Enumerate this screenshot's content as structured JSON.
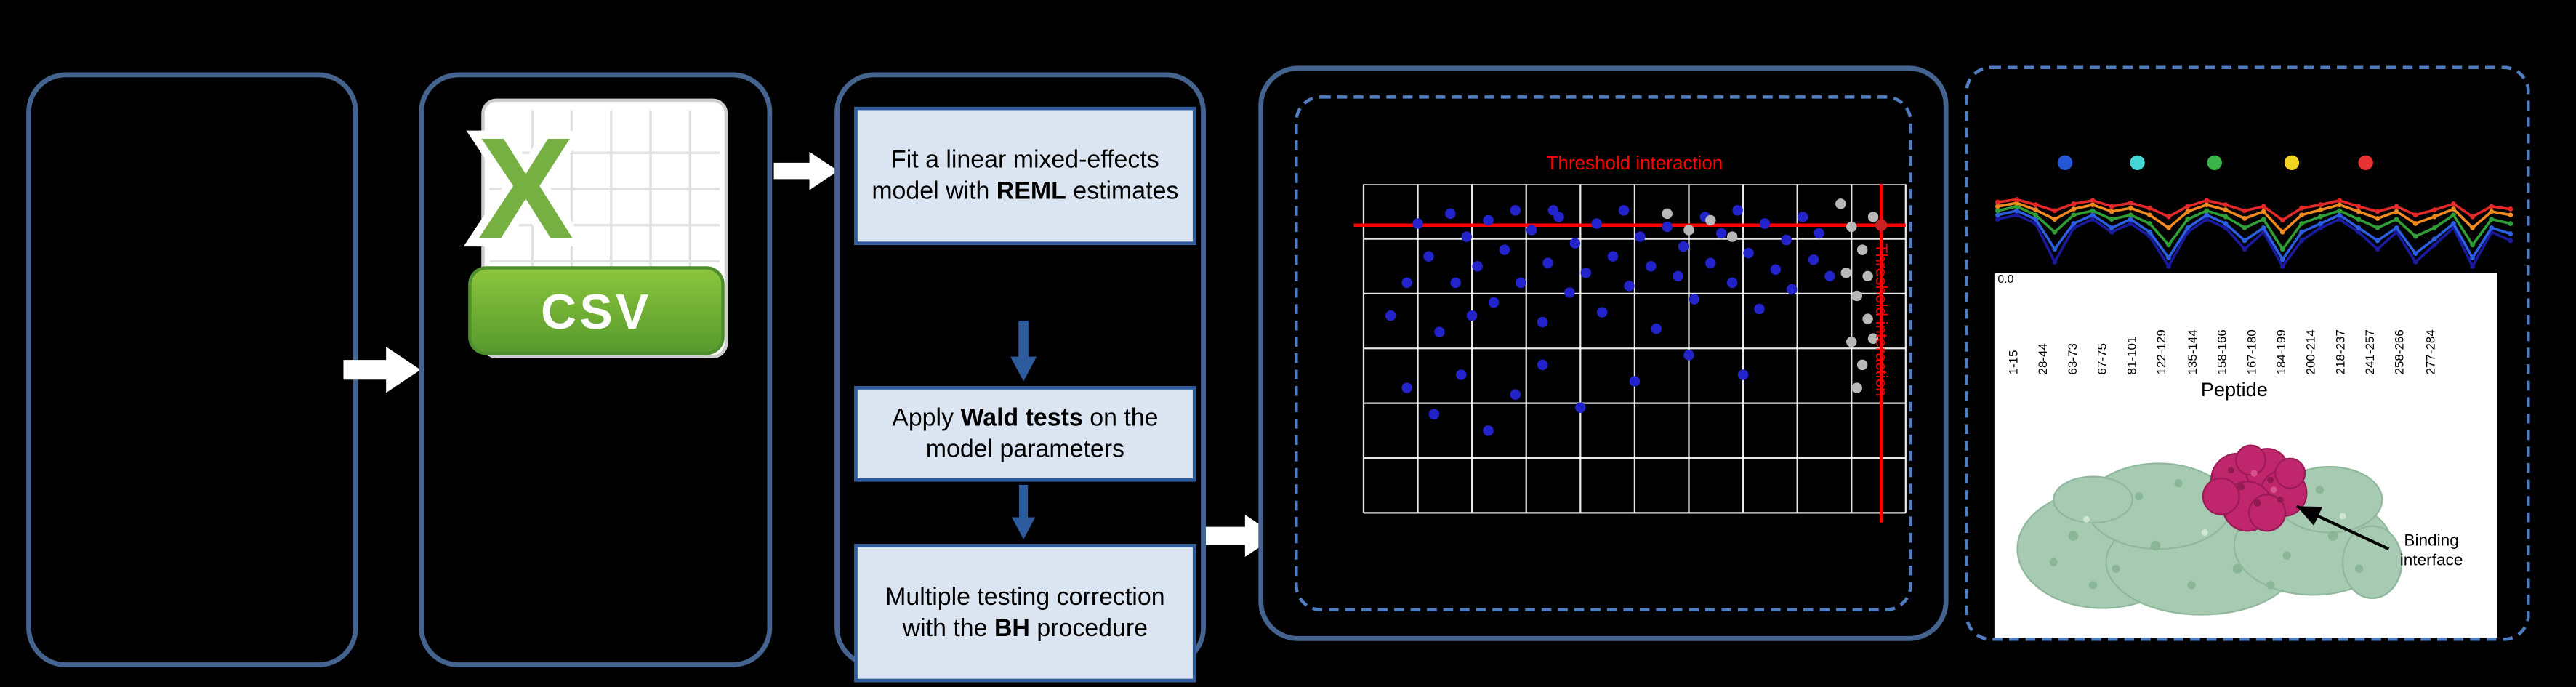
{
  "colors": {
    "background": "#000000",
    "box_border": "#44638f",
    "dashed_border": "#4f7dbf",
    "step_box_bg": "#dbe5f1",
    "step_box_border": "#2e5b9e",
    "flow_arrow": "#ffffff",
    "down_arrow": "#2e5b9e",
    "threshold_red": "#ff0000",
    "csv_green": "#76b043"
  },
  "flow": {
    "csv": {
      "letter": "X",
      "banner": "CSV"
    },
    "steps": {
      "fit": {
        "prefix": "Fit a linear mixed-effects model with ",
        "bold": "REML",
        "suffix": " estimates"
      },
      "wald": {
        "prefix": "Apply ",
        "bold": "Wald tests",
        "suffix": " on the model parameters"
      },
      "bh": {
        "prefix": "Multiple testing correction with the ",
        "bold": "BH",
        "suffix": " procedure"
      }
    }
  },
  "chart_data": [
    {
      "type": "scatter",
      "title": "Threshold interaction",
      "side_label": "Threshold interaction",
      "grid_cols": 10,
      "grid_rows": 6,
      "threshold_h_pct": 12.5,
      "threshold_v_pct": 95.5,
      "point_colors": {
        "blue": "#2323cc",
        "gray": "#b8b8b8",
        "red": "#cc2222"
      },
      "points_blue": [
        [
          5,
          40
        ],
        [
          8,
          30
        ],
        [
          10,
          12
        ],
        [
          12,
          22
        ],
        [
          14,
          45
        ],
        [
          16,
          9
        ],
        [
          17,
          30
        ],
        [
          19,
          16
        ],
        [
          21,
          25
        ],
        [
          23,
          11
        ],
        [
          24,
          36
        ],
        [
          26,
          20
        ],
        [
          28,
          8
        ],
        [
          29,
          30
        ],
        [
          31,
          14
        ],
        [
          33,
          42
        ],
        [
          34,
          24
        ],
        [
          36,
          10
        ],
        [
          38,
          33
        ],
        [
          39,
          18
        ],
        [
          41,
          27
        ],
        [
          43,
          12
        ],
        [
          44,
          39
        ],
        [
          46,
          22
        ],
        [
          48,
          8
        ],
        [
          49,
          31
        ],
        [
          51,
          16
        ],
        [
          53,
          25
        ],
        [
          54,
          44
        ],
        [
          56,
          13
        ],
        [
          58,
          28
        ],
        [
          59,
          19
        ],
        [
          61,
          35
        ],
        [
          63,
          10
        ],
        [
          64,
          24
        ],
        [
          66,
          15
        ],
        [
          68,
          30
        ],
        [
          69,
          8
        ],
        [
          71,
          21
        ],
        [
          73,
          38
        ],
        [
          74,
          12
        ],
        [
          76,
          26
        ],
        [
          78,
          17
        ],
        [
          79,
          32
        ],
        [
          81,
          10
        ],
        [
          83,
          23
        ],
        [
          84,
          15
        ],
        [
          86,
          28
        ],
        [
          8,
          62
        ],
        [
          13,
          70
        ],
        [
          18,
          58
        ],
        [
          23,
          75
        ],
        [
          28,
          64
        ],
        [
          33,
          55
        ],
        [
          40,
          68
        ],
        [
          50,
          60
        ],
        [
          60,
          52
        ],
        [
          70,
          58
        ],
        [
          20,
          40
        ],
        [
          35,
          8
        ]
      ],
      "points_gray": [
        [
          88,
          6
        ],
        [
          90,
          13
        ],
        [
          92,
          20
        ],
        [
          89,
          27
        ],
        [
          91,
          34
        ],
        [
          93,
          41
        ],
        [
          90,
          48
        ],
        [
          92,
          55
        ],
        [
          94,
          10
        ],
        [
          93,
          28
        ],
        [
          91,
          62
        ],
        [
          94,
          47
        ],
        [
          60,
          14
        ],
        [
          64,
          11
        ],
        [
          68,
          16
        ],
        [
          56,
          9
        ]
      ],
      "points_red": [
        [
          95.5,
          12.5
        ]
      ]
    },
    {
      "type": "line",
      "marker_dots": [
        {
          "x": 45,
          "color": "#2456d6"
        },
        {
          "x": 89,
          "color": "#45d6d6"
        },
        {
          "x": 136,
          "color": "#3cb24a"
        },
        {
          "x": 183,
          "color": "#f0d622"
        },
        {
          "x": 228,
          "color": "#e63232"
        }
      ],
      "series": [
        {
          "name": "state-navy",
          "color": "#1a1a9e",
          "values": [
            0.45,
            0.4,
            0.5,
            0.95,
            0.55,
            0.45,
            0.6,
            0.5,
            0.65,
            1.0,
            0.6,
            0.45,
            0.55,
            0.8,
            0.6,
            1.0,
            0.7,
            0.55,
            0.45,
            0.6,
            0.8,
            0.6,
            0.95,
            0.75,
            0.55,
            1.0,
            0.6,
            0.7
          ]
        },
        {
          "name": "state-blue",
          "color": "#2b5fe0",
          "values": [
            0.4,
            0.35,
            0.45,
            0.8,
            0.5,
            0.4,
            0.55,
            0.45,
            0.6,
            0.9,
            0.55,
            0.4,
            0.5,
            0.7,
            0.55,
            0.92,
            0.6,
            0.5,
            0.4,
            0.55,
            0.7,
            0.55,
            0.85,
            0.68,
            0.5,
            0.9,
            0.55,
            0.62
          ]
        },
        {
          "name": "state-green",
          "color": "#2f9e36",
          "values": [
            0.35,
            0.3,
            0.4,
            0.6,
            0.4,
            0.35,
            0.45,
            0.4,
            0.5,
            0.75,
            0.45,
            0.35,
            0.42,
            0.55,
            0.45,
            0.8,
            0.5,
            0.42,
            0.35,
            0.45,
            0.55,
            0.45,
            0.65,
            0.55,
            0.4,
            0.75,
            0.45,
            0.5
          ]
        },
        {
          "name": "state-orange",
          "color": "#f08a1e",
          "values": [
            0.3,
            0.26,
            0.34,
            0.45,
            0.33,
            0.28,
            0.36,
            0.32,
            0.4,
            0.55,
            0.36,
            0.28,
            0.34,
            0.44,
            0.36,
            0.6,
            0.4,
            0.34,
            0.28,
            0.36,
            0.44,
            0.36,
            0.5,
            0.42,
            0.33,
            0.55,
            0.36,
            0.4
          ]
        },
        {
          "name": "state-red",
          "color": "#e42828",
          "values": [
            0.25,
            0.22,
            0.28,
            0.35,
            0.27,
            0.23,
            0.3,
            0.26,
            0.32,
            0.42,
            0.3,
            0.23,
            0.28,
            0.35,
            0.3,
            0.46,
            0.32,
            0.28,
            0.23,
            0.3,
            0.36,
            0.3,
            0.4,
            0.34,
            0.27,
            0.42,
            0.3,
            0.33
          ]
        }
      ],
      "axis_zero": "0.0",
      "xlabel": "Peptide",
      "peptide_ticks": [
        "1-15",
        "28-44",
        "63-73",
        "67-75",
        "81-101",
        "122-129",
        "135-144",
        "158-166",
        "167-180",
        "184-199",
        "200-214",
        "218-237",
        "241-257",
        "258-266",
        "277-284"
      ]
    }
  ],
  "structure": {
    "annotation": "Binding interface"
  }
}
